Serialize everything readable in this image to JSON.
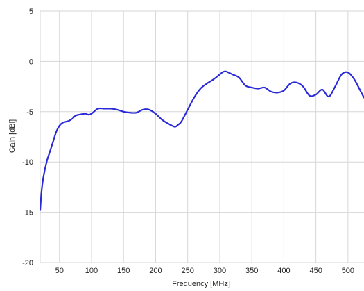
{
  "chart_data": {
    "type": "line",
    "title": "",
    "xlabel": "Frequency [MHz]",
    "ylabel": "Gain [dBi]",
    "xlim": [
      20,
      525
    ],
    "ylim": [
      -20,
      5
    ],
    "x_ticks": [
      50,
      100,
      150,
      200,
      250,
      300,
      350,
      400,
      450,
      500
    ],
    "y_ticks": [
      5,
      0,
      -5,
      -10,
      -15,
      -20
    ],
    "x_tick_labels": [
      "50",
      "100",
      "150",
      "200",
      "250",
      "300",
      "350",
      "400",
      "450",
      "500"
    ],
    "y_tick_labels": [
      "5",
      "0",
      "-5",
      "-10",
      "-15",
      "-20"
    ],
    "grid": true,
    "series": [
      {
        "color": "#2a2ad8",
        "x": [
          20,
          22,
          25,
          30,
          35,
          40,
          45,
          50,
          55,
          60,
          65,
          70,
          75,
          80,
          90,
          95,
          100,
          110,
          120,
          130,
          140,
          150,
          160,
          170,
          180,
          190,
          200,
          210,
          220,
          230,
          235,
          240,
          250,
          260,
          270,
          280,
          290,
          300,
          305,
          310,
          320,
          330,
          340,
          350,
          360,
          370,
          380,
          390,
          400,
          410,
          420,
          430,
          440,
          450,
          460,
          470,
          480,
          490,
          500,
          510,
          520,
          525
        ],
        "y": [
          -14.8,
          -13.0,
          -11.5,
          -10.0,
          -9.0,
          -8.0,
          -7.0,
          -6.4,
          -6.1,
          -6.0,
          -5.9,
          -5.7,
          -5.4,
          -5.3,
          -5.2,
          -5.3,
          -5.2,
          -4.7,
          -4.7,
          -4.7,
          -4.8,
          -5.0,
          -5.1,
          -5.1,
          -4.8,
          -4.8,
          -5.2,
          -5.8,
          -6.2,
          -6.5,
          -6.3,
          -6.0,
          -4.8,
          -3.6,
          -2.7,
          -2.2,
          -1.8,
          -1.3,
          -1.05,
          -1.0,
          -1.3,
          -1.6,
          -2.4,
          -2.6,
          -2.7,
          -2.6,
          -3.0,
          -3.1,
          -2.9,
          -2.2,
          -2.1,
          -2.5,
          -3.4,
          -3.3,
          -2.8,
          -3.5,
          -2.5,
          -1.3,
          -1.1,
          -1.8,
          -3.0,
          -3.6
        ]
      }
    ]
  }
}
